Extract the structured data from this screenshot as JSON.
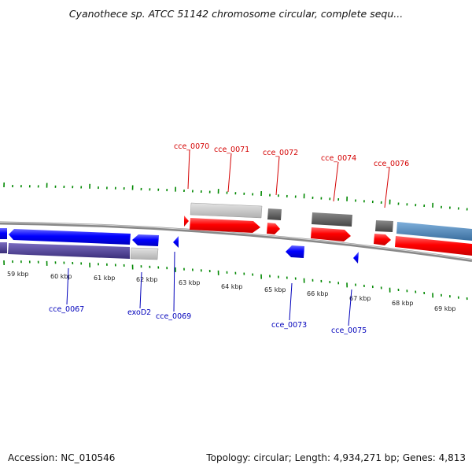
{
  "title": "Cyanothece sp. ATCC 51142 chromosome circular, complete sequ...",
  "footer": {
    "accession": "Accession: NC_010546",
    "summary": "Topology: circular; Length: 4,934,271 bp; Genes: 4,813"
  },
  "scale_labels": [
    "59 kbp",
    "60 kbp",
    "61 kbp",
    "62 kbp",
    "63 kbp",
    "64 kbp",
    "65 kbp",
    "66 kbp",
    "67 kbp",
    "68 kbp",
    "69 kbp"
  ],
  "top_gene_labels": [
    "cce_0070",
    "cce_0071",
    "cce_0072",
    "cce_0074",
    "cce_0076"
  ],
  "bottom_gene_labels": [
    "cce_0067",
    "exoD2",
    "cce_0069",
    "cce_0073",
    "cce_0075"
  ],
  "colors": {
    "forward_gene": "#ff0000",
    "reverse_gene": "#0000ff",
    "feature_gray_light": "#c8c8c8",
    "feature_gray_dark": "#5a5a5a",
    "feature_purple": "#4a3d8f",
    "feature_steelblue": "#4682b4",
    "tick_green": "#008800",
    "backbone": "#888888",
    "top_label": "#d40000",
    "bottom_label": "#0000bb"
  }
}
